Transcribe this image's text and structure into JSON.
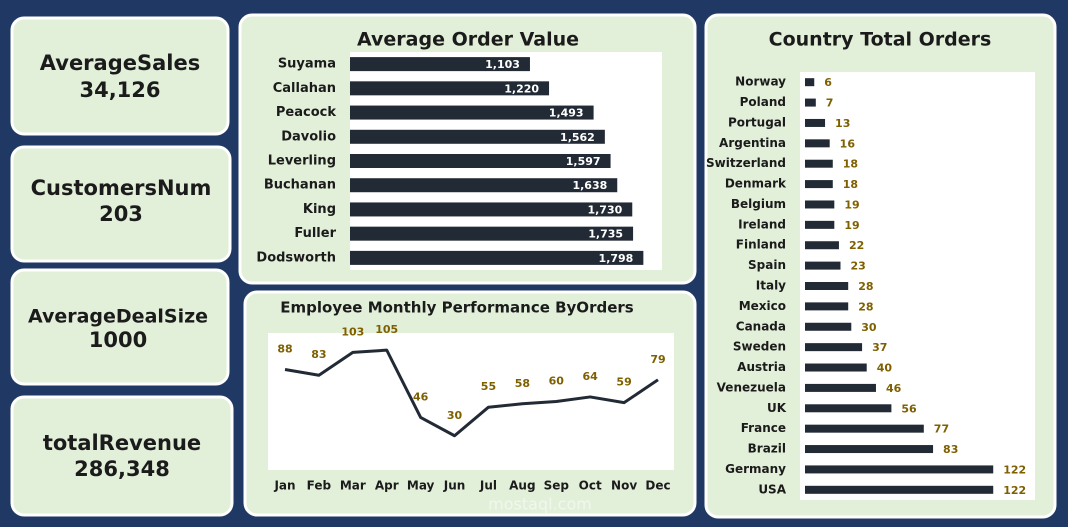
{
  "kpis": [
    {
      "label": "AverageSales",
      "value": "34,126"
    },
    {
      "label": "CustomersNum",
      "value": "203"
    },
    {
      "label": "AverageDealSize",
      "value": "1000"
    },
    {
      "label": "totalRevenue",
      "value": "286,348"
    }
  ],
  "chart_data": [
    {
      "type": "hbar",
      "title": "Average Order Value",
      "categories": [
        "Suyama",
        "Callahan",
        "Peacock",
        "Davolio",
        "Leverling",
        "Buchanan",
        "King",
        "Fuller",
        "Dodsworth"
      ],
      "values": [
        1103,
        1220,
        1493,
        1562,
        1597,
        1638,
        1730,
        1735,
        1798
      ],
      "value_labels": [
        "1,103",
        "1,220",
        "1,493",
        "1,562",
        "1,597",
        "1,638",
        "1,730",
        "1,735",
        "1,798"
      ],
      "color": "#222a35",
      "label_color": "#ffffff",
      "label_position": "inside",
      "xlim": [
        0,
        1900
      ]
    },
    {
      "type": "line",
      "title": "Employee Monthly Performance ByOrders",
      "categories": [
        "Jan",
        "Feb",
        "Mar",
        "Apr",
        "May",
        "Jun",
        "Jul",
        "Aug",
        "Sep",
        "Oct",
        "Nov",
        "Dec"
      ],
      "values": [
        88,
        83,
        103,
        105,
        46,
        30,
        55,
        58,
        60,
        64,
        59,
        79
      ],
      "color": "#222a35",
      "label_color": "#7f6000",
      "ylim": [
        0,
        120
      ]
    },
    {
      "type": "hbar",
      "title": "Country Total Orders",
      "categories": [
        "Norway",
        "Poland",
        "Portugal",
        "Argentina",
        "Switzerland",
        "Denmark",
        "Belgium",
        "Ireland",
        "Finland",
        "Spain",
        "Italy",
        "Mexico",
        "Canada",
        "Sweden",
        "Austria",
        "Venezuela",
        "UK",
        "France",
        "Brazil",
        "Germany",
        "USA"
      ],
      "values": [
        6,
        7,
        13,
        16,
        18,
        18,
        19,
        19,
        22,
        23,
        28,
        28,
        30,
        37,
        40,
        46,
        56,
        77,
        83,
        122,
        122
      ],
      "color": "#222a35",
      "label_color": "#7f6000",
      "label_position": "outside",
      "xlim": [
        0,
        140
      ]
    }
  ],
  "watermark": "mostaql.com"
}
